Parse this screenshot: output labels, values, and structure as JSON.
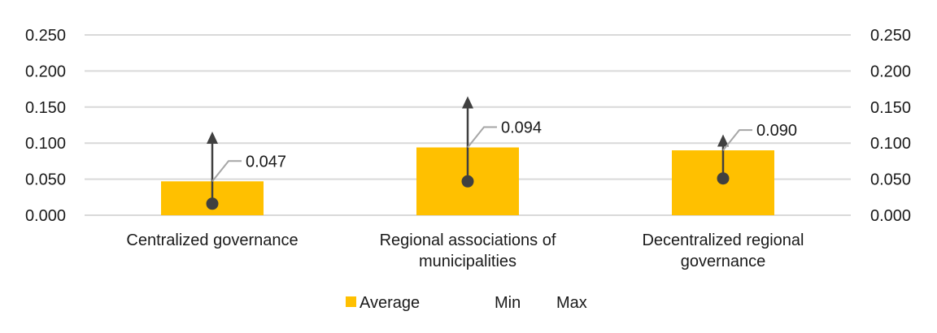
{
  "chart_data": {
    "type": "bar",
    "categories": [
      [
        "Centralized governance"
      ],
      [
        "Regional associations of",
        "municipalities"
      ],
      [
        "Decentralized regional",
        "governance"
      ]
    ],
    "series": [
      {
        "name": "Average",
        "values": [
          0.047,
          0.094,
          0.09
        ]
      },
      {
        "name": "Min",
        "values": [
          0.016,
          0.047,
          0.051
        ]
      },
      {
        "name": "Max",
        "values": [
          0.116,
          0.165,
          0.112
        ]
      }
    ],
    "data_labels": [
      "0.047",
      "0.094",
      "0.090"
    ],
    "y_ticks": [
      "0.000",
      "0.050",
      "0.100",
      "0.150",
      "0.200",
      "0.250"
    ],
    "ylim": [
      0,
      0.25
    ],
    "secondary_y_axis": true,
    "grid": true,
    "legend_position": "bottom",
    "colors": {
      "bar": "#FFC000",
      "marker": "#404040",
      "grid": "#D9D9D9",
      "leader": "#A6A6A6"
    }
  }
}
